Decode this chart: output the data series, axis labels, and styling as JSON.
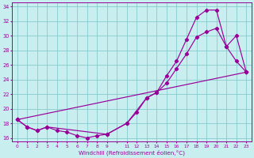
{
  "xlabel": "Windchill (Refroidissement éolien,°C)",
  "bg_color": "#c8eef0",
  "line_color": "#990099",
  "grid_color": "#88cccc",
  "x_labels": [
    "0",
    "1",
    "2",
    "3",
    "4",
    "5",
    "6",
    "7",
    "8",
    "9",
    "",
    "11",
    "12",
    "13",
    "14",
    "15",
    "16",
    "17",
    "18",
    "19",
    "20",
    "21",
    "22",
    "23"
  ],
  "xlim": [
    -0.5,
    23.5
  ],
  "ylim": [
    15.5,
    34.5
  ],
  "y_ticks": [
    16,
    18,
    20,
    22,
    24,
    26,
    28,
    30,
    32,
    34
  ],
  "series1_x": [
    0,
    1,
    2,
    3,
    4,
    5,
    6,
    7,
    8,
    9,
    11,
    12,
    13,
    14,
    15,
    16,
    17,
    18,
    19,
    20,
    21,
    22,
    23
  ],
  "series1_y": [
    18.5,
    17.5,
    17.0,
    17.5,
    17.0,
    16.8,
    16.3,
    16.0,
    16.3,
    16.5,
    18.0,
    19.5,
    21.5,
    22.2,
    23.5,
    25.5,
    27.5,
    29.8,
    30.5,
    31.0,
    28.5,
    26.5,
    25.0
  ],
  "series2_x": [
    0,
    1,
    2,
    3,
    9,
    11,
    13,
    14,
    15,
    16,
    17,
    18,
    19,
    20,
    21,
    22,
    23
  ],
  "series2_y": [
    18.5,
    17.5,
    17.0,
    17.5,
    16.5,
    18.0,
    21.5,
    22.2,
    24.5,
    26.5,
    29.5,
    32.5,
    33.5,
    33.5,
    28.5,
    30.0,
    25.0
  ],
  "series3_x": [
    0,
    23
  ],
  "series3_y": [
    18.5,
    25.0
  ]
}
